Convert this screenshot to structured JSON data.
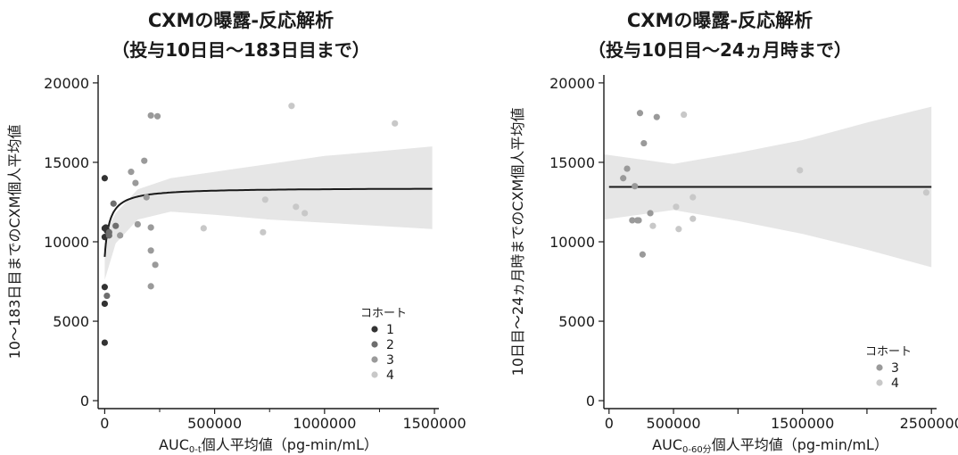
{
  "chart_data": [
    {
      "type": "scatter",
      "title_line1": "CXMの曝露-反応解析",
      "title_line2": "（投与10日目～183日目まで）",
      "xlabel_main": "AUC",
      "xlabel_sub": "0-t",
      "xlabel_tail": "個人平均値（pg-min/mL）",
      "ylabel": "10～183日目までのCXM個人平均値",
      "xlim": [
        -30000,
        1520000
      ],
      "ylim": [
        -500,
        20500
      ],
      "xticks": [
        0,
        500000,
        1000000,
        1500000
      ],
      "xtick_labels": [
        "0",
        "500000",
        "1000000",
        "1500000"
      ],
      "xminor": [
        250000,
        750000,
        1250000
      ],
      "yticks": [
        0,
        5000,
        10000,
        15000,
        20000
      ],
      "ytick_labels": [
        "0",
        "5000",
        "10000",
        "15000",
        "20000"
      ],
      "grid": false,
      "legend": {
        "title": "コホート",
        "position": "bottom-right",
        "entries": [
          "1",
          "2",
          "3",
          "4"
        ]
      },
      "colors": {
        "1": "#333333",
        "2": "#6e6e6e",
        "3": "#9a9a9a",
        "4": "#c8c8c8"
      },
      "series": [
        {
          "name": "1",
          "points": [
            [
              0,
              14000
            ],
            [
              0,
              10850
            ],
            [
              5000,
              10900
            ],
            [
              0,
              10300
            ],
            [
              0,
              7150
            ],
            [
              0,
              6100
            ],
            [
              0,
              3650
            ],
            [
              10000,
              10700
            ]
          ]
        },
        {
          "name": "2",
          "points": [
            [
              20000,
              10400
            ],
            [
              40000,
              12400
            ],
            [
              50000,
              11000
            ],
            [
              20000,
              10600
            ],
            [
              10000,
              6600
            ]
          ]
        },
        {
          "name": "3",
          "points": [
            [
              70000,
              10400
            ],
            [
              120000,
              14400
            ],
            [
              140000,
              13700
            ],
            [
              150000,
              11100
            ],
            [
              180000,
              15100
            ],
            [
              190000,
              12800
            ],
            [
              210000,
              17950
            ],
            [
              240000,
              17900
            ],
            [
              210000,
              10900
            ],
            [
              210000,
              9450
            ],
            [
              230000,
              8550
            ],
            [
              210000,
              7200
            ]
          ]
        },
        {
          "name": "4",
          "points": [
            [
              450000,
              10850
            ],
            [
              720000,
              10600
            ],
            [
              730000,
              12650
            ],
            [
              850000,
              18550
            ],
            [
              870000,
              12200
            ],
            [
              910000,
              11800
            ],
            [
              1320000,
              17450
            ]
          ]
        }
      ],
      "fit_curve": {
        "emax": 13400,
        "e0": 9050,
        "ec50": 22000
      },
      "ci_band": {
        "x": [
          0,
          50000,
          150000,
          300000,
          500000,
          750000,
          1000000,
          1250000,
          1490000
        ],
        "lower": [
          7600,
          9900,
          11400,
          11900,
          11700,
          11400,
          11200,
          11000,
          10800
        ],
        "upper": [
          10500,
          11800,
          13300,
          14000,
          14400,
          14900,
          15400,
          15700,
          16000
        ]
      }
    },
    {
      "type": "scatter",
      "title_line1": "CXMの曝露-反応解析",
      "title_line2": "（投与10日目～24ヵ月時まで）",
      "xlabel_main": "AUC",
      "xlabel_sub": "0-60分",
      "xlabel_tail": "個人平均値（pg-min/mL）",
      "ylabel": "10日目～24ヵ月時までのCXM個人平均値",
      "xlim": [
        -40000,
        2540000
      ],
      "ylim": [
        -500,
        20500
      ],
      "xticks": [
        0,
        500000,
        1000000,
        1500000,
        2000000,
        2500000
      ],
      "xtick_labels": [
        "0",
        "500000",
        "",
        "1500000",
        "",
        "2500000"
      ],
      "yticks": [
        0,
        5000,
        10000,
        15000,
        20000
      ],
      "ytick_labels": [
        "0",
        "5000",
        "10000",
        "15000",
        "20000"
      ],
      "grid": false,
      "legend": {
        "title": "コホート",
        "position": "bottom-right",
        "entries": [
          "3",
          "4"
        ]
      },
      "colors": {
        "3": "#9a9a9a",
        "4": "#c8c8c8"
      },
      "series": [
        {
          "name": "3",
          "points": [
            [
              240000,
              18100
            ],
            [
              370000,
              17850
            ],
            [
              270000,
              16200
            ],
            [
              140000,
              14600
            ],
            [
              110000,
              14000
            ],
            [
              200000,
              13500
            ],
            [
              180000,
              11350
            ],
            [
              220000,
              11350
            ],
            [
              230000,
              11350
            ],
            [
              320000,
              11800
            ],
            [
              260000,
              9200
            ]
          ]
        },
        {
          "name": "4",
          "points": [
            [
              580000,
              18000
            ],
            [
              340000,
              11000
            ],
            [
              520000,
              12200
            ],
            [
              650000,
              12800
            ],
            [
              650000,
              11450
            ],
            [
              540000,
              10800
            ],
            [
              1480000,
              14500
            ],
            [
              2460000,
              13100
            ]
          ]
        }
      ],
      "fit_line": {
        "x": [
          0,
          2500000
        ],
        "y": [
          13450,
          13450
        ]
      },
      "ci_band": {
        "x": [
          -40000,
          500000,
          1000000,
          1500000,
          2000000,
          2500000
        ],
        "lower": [
          11400,
          12000,
          11300,
          10500,
          9500,
          8400
        ],
        "upper": [
          15500,
          14900,
          15600,
          16400,
          17500,
          18500
        ]
      }
    }
  ]
}
